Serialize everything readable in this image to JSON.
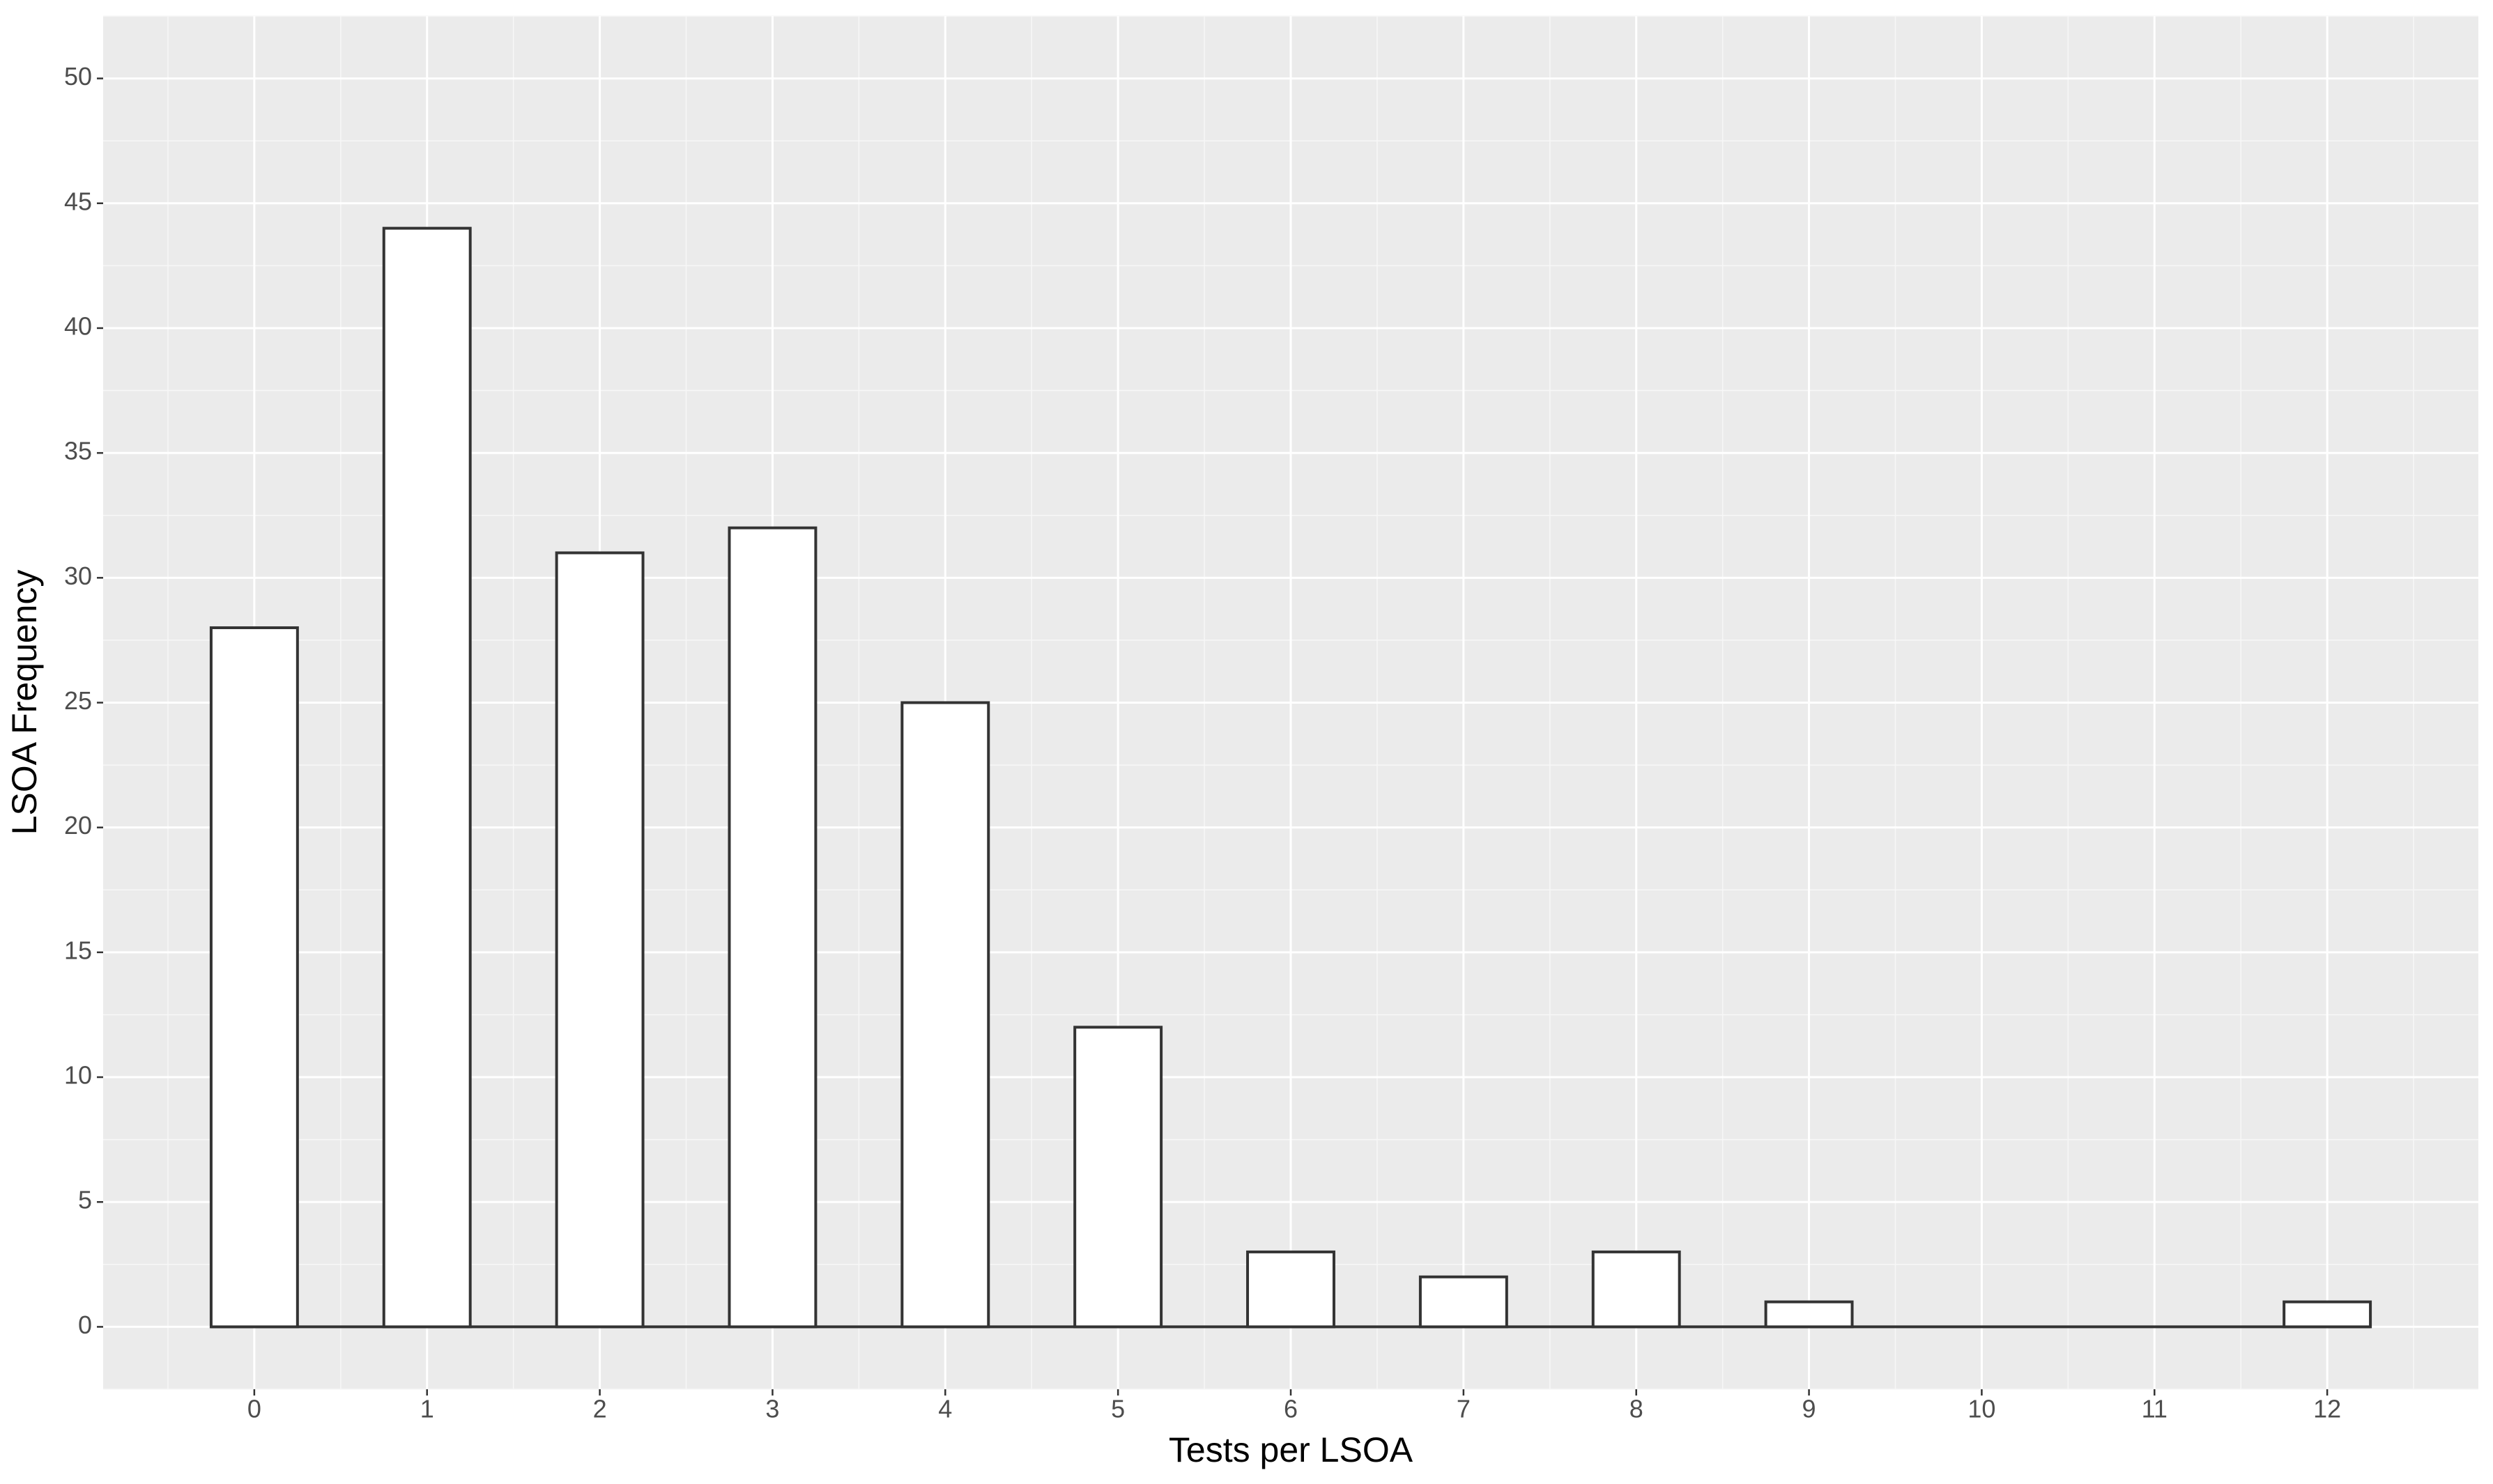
{
  "chart_data": {
    "type": "bar",
    "x_label": "Tests per LSOA",
    "y_label": "LSOA Frequency",
    "x": [
      0,
      1,
      2,
      3,
      4,
      5,
      6,
      7,
      8,
      9,
      10,
      11,
      12
    ],
    "values": [
      28,
      44,
      31,
      32,
      25,
      12,
      3,
      2,
      3,
      1,
      0,
      0,
      1
    ],
    "color": "#ffffff",
    "edge_color": "#333333",
    "xlim": [
      -0.875,
      12.875
    ],
    "xticks": [
      0,
      1,
      2,
      3,
      4,
      5,
      6,
      7,
      8,
      9,
      10,
      11,
      12
    ],
    "ylim": [
      -2.5,
      52.5
    ],
    "yticks": [
      0,
      5,
      10,
      15,
      20,
      25,
      30,
      35,
      40,
      45,
      50
    ],
    "grid": true
  }
}
